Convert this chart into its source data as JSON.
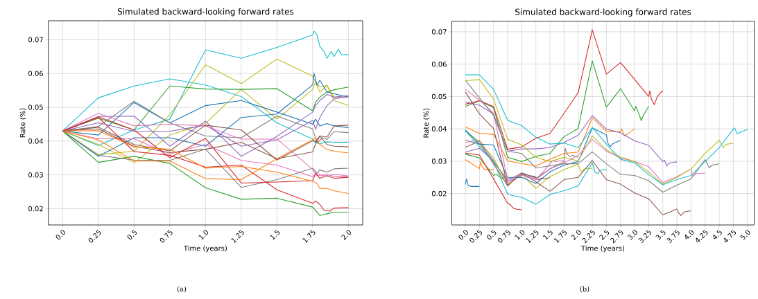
{
  "chart_data": [
    {
      "type": "line",
      "title": "Simulated backward-looking forward rates",
      "xlabel": "Time (years)",
      "ylabel": "Rate (%)",
      "annotations": [
        "(a)"
      ],
      "grid": true,
      "xlim": [
        -0.1,
        2.1
      ],
      "ylim": [
        0.0152,
        0.0756
      ],
      "xticks": [
        {
          "value": 0,
          "label": "0.0"
        },
        0.25,
        0.5,
        0.75,
        {
          "value": 1,
          "label": "1.0"
        },
        1.25,
        1.5,
        1.75,
        {
          "value": 2,
          "label": "2.0"
        }
      ],
      "yticks": [
        0.02,
        0.03,
        0.04,
        0.05,
        0.06,
        0.07
      ],
      "series": [
        {
          "color": "#17becf",
          "x": [
            0,
            0.25,
            0.5,
            0.75,
            1,
            1.25,
            1.5,
            1.75,
            1.77,
            1.8,
            1.85,
            1.9,
            2.0
          ],
          "values": [
            0.043,
            0.0528,
            0.0563,
            0.0584,
            0.0566,
            0.0532,
            0.0454,
            0.0406,
            0.0395,
            0.0392,
            0.0398,
            0.0396,
            0.0397
          ]
        },
        {
          "color": "#17becf",
          "x": [
            0,
            0.25,
            0.5,
            0.75,
            1,
            1.25,
            1.5,
            1.75,
            1.76,
            1.78,
            1.8,
            1.83,
            1.85,
            1.88,
            1.9,
            1.93,
            1.95,
            2.0
          ],
          "values": [
            0.043,
            0.0387,
            0.0433,
            0.0465,
            0.067,
            0.0645,
            0.0677,
            0.0714,
            0.0725,
            0.0715,
            0.068,
            0.0665,
            0.0645,
            0.0665,
            0.065,
            0.0672,
            0.0655,
            0.0656
          ]
        },
        {
          "color": "#bcbd22",
          "x": [
            0,
            0.25,
            0.5,
            0.75,
            1,
            1.25,
            1.5,
            1.75,
            1.77,
            1.8,
            1.85,
            1.9,
            2.0
          ],
          "values": [
            0.043,
            0.036,
            0.037,
            0.0478,
            0.0626,
            0.057,
            0.0643,
            0.0592,
            0.0575,
            0.056,
            0.0565,
            0.052,
            0.0505
          ]
        },
        {
          "color": "#bcbd22",
          "x": [
            0,
            0.25,
            0.5,
            0.75,
            1,
            1.25,
            1.5,
            1.75,
            1.77,
            1.8,
            1.85,
            1.9,
            2.0
          ],
          "values": [
            0.043,
            0.039,
            0.0336,
            0.0418,
            0.0452,
            0.0553,
            0.0465,
            0.0553,
            0.0575,
            0.0545,
            0.0565,
            0.053,
            0.053
          ]
        },
        {
          "color": "#2ca02c",
          "x": [
            0,
            0.25,
            0.5,
            0.75,
            1,
            1.25,
            1.5,
            1.75,
            1.77,
            1.8,
            1.85,
            1.9,
            2.0
          ],
          "values": [
            0.043,
            0.0468,
            0.0433,
            0.0563,
            0.0554,
            0.0553,
            0.0555,
            0.049,
            0.0515,
            0.053,
            0.0545,
            0.0552,
            0.056
          ]
        },
        {
          "color": "#2ca02c",
          "x": [
            0,
            0.25,
            0.5,
            0.75,
            1,
            1.25,
            1.5,
            1.75,
            1.78,
            1.8,
            1.85,
            1.9,
            2.0
          ],
          "values": [
            0.043,
            0.0337,
            0.0355,
            0.0334,
            0.0262,
            0.0228,
            0.0231,
            0.0205,
            0.019,
            0.018,
            0.0185,
            0.019,
            0.019
          ]
        },
        {
          "color": "#1f77b4",
          "x": [
            0,
            0.25,
            0.5,
            0.75,
            1,
            1.25,
            1.5,
            1.75,
            1.77,
            1.8,
            1.85,
            1.9,
            2.0
          ],
          "values": [
            0.043,
            0.0418,
            0.0514,
            0.0454,
            0.0505,
            0.052,
            0.0486,
            0.045,
            0.0465,
            0.0445,
            0.0452,
            0.0445,
            0.044
          ]
        },
        {
          "color": "#1f77b4",
          "x": [
            0,
            0.25,
            0.5,
            0.75,
            1,
            1.25,
            1.5,
            1.75,
            1.76,
            1.78,
            1.8,
            1.85,
            1.9,
            2.0
          ],
          "values": [
            0.043,
            0.0355,
            0.041,
            0.041,
            0.0385,
            0.047,
            0.048,
            0.0567,
            0.06,
            0.0565,
            0.058,
            0.0545,
            0.054,
            0.053
          ]
        },
        {
          "color": "#7f7f7f",
          "x": [
            0,
            0.25,
            0.5,
            0.75,
            1,
            1.25,
            1.5,
            1.75,
            1.78,
            1.82,
            1.85,
            1.9,
            2.0
          ],
          "values": [
            0.043,
            0.0443,
            0.0518,
            0.0454,
            0.0415,
            0.041,
            0.0474,
            0.0436,
            0.0395,
            0.041,
            0.0405,
            0.0428,
            0.0425
          ]
        },
        {
          "color": "#7f7f7f",
          "x": [
            0,
            0.25,
            0.5,
            0.75,
            1,
            1.25,
            1.5,
            1.75,
            1.78,
            1.8,
            1.85,
            1.9,
            2.0
          ],
          "values": [
            0.043,
            0.0358,
            0.0344,
            0.0343,
            0.0376,
            0.0263,
            0.0286,
            0.032,
            0.0305,
            0.0315,
            0.0308,
            0.0318,
            0.032
          ]
        },
        {
          "color": "#9467bd",
          "x": [
            0,
            0.25,
            0.5,
            0.75,
            1,
            1.25,
            1.5,
            1.75,
            1.77,
            1.8,
            1.85,
            1.9,
            2.0
          ],
          "values": [
            0.043,
            0.0473,
            0.0474,
            0.0385,
            0.0459,
            0.0355,
            0.0414,
            0.0486,
            0.0505,
            0.052,
            0.0538,
            0.053,
            0.0535
          ]
        },
        {
          "color": "#9467bd",
          "x": [
            0,
            0.25,
            0.5,
            0.75,
            1,
            1.25,
            1.5,
            1.75,
            1.77,
            1.8,
            1.85,
            1.9,
            2.0
          ],
          "values": [
            0.043,
            0.0454,
            0.0429,
            0.0429,
            0.0447,
            0.0385,
            0.0404,
            0.0461,
            0.0435,
            0.047,
            0.0505,
            0.0525,
            0.0532
          ]
        },
        {
          "color": "#e377c2",
          "x": [
            0,
            0.25,
            0.5,
            0.75,
            1,
            1.25,
            1.5,
            1.75,
            1.78,
            1.82,
            1.85,
            1.9,
            2.0
          ],
          "values": [
            0.043,
            0.0482,
            0.0445,
            0.045,
            0.0445,
            0.0406,
            0.0406,
            0.0316,
            0.0298,
            0.03,
            0.0296,
            0.0302,
            0.0297
          ]
        },
        {
          "color": "#e377c2",
          "x": [
            0,
            0.25,
            0.5,
            0.75,
            1,
            1.25,
            1.5,
            1.75,
            1.78,
            1.82,
            1.85,
            1.9,
            2.0
          ],
          "values": [
            0.043,
            0.0407,
            0.0407,
            0.0362,
            0.039,
            0.0343,
            0.0329,
            0.0295,
            0.0305,
            0.0298,
            0.0302,
            0.0296,
            0.0295
          ]
        },
        {
          "color": "#8c564b",
          "x": [
            0,
            0.25,
            0.5,
            0.75,
            1,
            1.25,
            1.5,
            1.75,
            1.78,
            1.8,
            1.85,
            1.9,
            2.0
          ],
          "values": [
            0.043,
            0.0441,
            0.039,
            0.0371,
            0.0447,
            0.0433,
            0.0344,
            0.0401,
            0.0398,
            0.0415,
            0.0412,
            0.0445,
            0.0447
          ]
        },
        {
          "color": "#8c564b",
          "x": [
            0,
            0.25,
            0.5,
            0.75,
            1,
            1.25,
            1.5,
            1.75,
            1.78,
            1.8,
            1.85,
            1.9,
            2.0
          ],
          "values": [
            0.043,
            0.0436,
            0.0385,
            0.0366,
            0.0376,
            0.0396,
            0.0348,
            0.0368,
            0.0405,
            0.0415,
            0.039,
            0.0385,
            0.0383
          ]
        },
        {
          "color": "#d62728",
          "x": [
            0,
            0.25,
            0.5,
            0.75,
            1,
            1.25,
            1.5,
            1.75,
            1.77,
            1.8,
            1.85,
            1.9,
            2.0
          ],
          "values": [
            0.043,
            0.0472,
            0.0433,
            0.0351,
            0.0408,
            0.0276,
            0.0279,
            0.0283,
            0.0305,
            0.029,
            0.0298,
            0.029,
            0.0293
          ]
        },
        {
          "color": "#d62728",
          "x": [
            0,
            0.25,
            0.5,
            0.75,
            1,
            1.25,
            1.5,
            1.75,
            1.77,
            1.8,
            1.83,
            1.87,
            1.9,
            2.0
          ],
          "values": [
            0.043,
            0.047,
            0.0369,
            0.0358,
            0.0323,
            0.0329,
            0.0256,
            0.0216,
            0.0223,
            0.0213,
            0.0195,
            0.0193,
            0.0202,
            0.0203
          ]
        },
        {
          "color": "#ff7f0e",
          "x": [
            0,
            0.25,
            0.5,
            0.75,
            1,
            1.25,
            1.5,
            1.75,
            1.78,
            1.8,
            1.85,
            1.9,
            2.0
          ],
          "values": [
            0.043,
            0.0431,
            0.0383,
            0.0376,
            0.032,
            0.0325,
            0.0308,
            0.0281,
            0.0275,
            0.026,
            0.026,
            0.0253,
            0.0245
          ]
        },
        {
          "color": "#ff7f0e",
          "x": [
            0,
            0.25,
            0.5,
            0.75,
            1,
            1.25,
            1.5,
            1.75,
            1.77,
            1.8,
            1.85,
            1.9,
            2.0
          ],
          "values": [
            0.043,
            0.0404,
            0.0341,
            0.0341,
            0.0289,
            0.0286,
            0.0348,
            0.0404,
            0.041,
            0.039,
            0.0375,
            0.037,
            0.0365
          ]
        }
      ]
    },
    {
      "type": "line",
      "title": "Simulated backward-looking forward rates",
      "xlabel": "Time (years)",
      "ylabel": "Rate (%)",
      "annotations": [
        "(b)"
      ],
      "grid": true,
      "xlim": [
        -0.24,
        5.12
      ],
      "ylim": [
        0.0103,
        0.0733
      ],
      "xticks": [
        {
          "value": 0,
          "label": "0.0"
        },
        0.25,
        0.5,
        0.75,
        {
          "value": 1,
          "label": "1.0"
        },
        1.25,
        1.5,
        1.75,
        {
          "value": 2,
          "label": "2.0"
        },
        2.25,
        2.5,
        2.75,
        {
          "value": 3,
          "label": "3.0"
        },
        3.25,
        3.5,
        3.75,
        {
          "value": 4,
          "label": "4.0"
        },
        4.25,
        4.5,
        4.75,
        {
          "value": 5,
          "label": "5.0"
        }
      ],
      "yticks": [
        0.02,
        0.03,
        0.04,
        0.05,
        0.06,
        0.07
      ],
      "series": [
        {
          "color": "#1f77b4",
          "x": [
            0,
            0.02,
            0.05,
            0.1,
            0.25
          ],
          "values": [
            0.0228,
            0.0245,
            0.0225,
            0.0222,
            0.0222
          ]
        },
        {
          "color": "#ff7f0e",
          "x": [
            0,
            0.25,
            0.27,
            0.3,
            0.35,
            0.4,
            0.5
          ],
          "values": [
            0.0305,
            0.0277,
            0.0297,
            0.0283,
            0.0273,
            0.0276,
            0.0273
          ]
        },
        {
          "color": "#2ca02c",
          "x": [
            0,
            0.25,
            0.5,
            0.55,
            0.6,
            0.65,
            0.7,
            0.75
          ],
          "values": [
            0.0322,
            0.031,
            0.0256,
            0.026,
            0.0252,
            0.0246,
            0.0252,
            0.0252
          ]
        },
        {
          "color": "#d62728",
          "x": [
            0,
            0.25,
            0.5,
            0.75,
            0.8,
            0.85,
            0.9,
            1.0
          ],
          "values": [
            0.0325,
            0.0319,
            0.0245,
            0.017,
            0.0165,
            0.0155,
            0.0152,
            0.015
          ]
        },
        {
          "color": "#9467bd",
          "x": [
            0,
            0.25,
            0.5,
            0.75,
            1,
            1.05,
            1.1,
            1.15,
            1.25
          ],
          "values": [
            0.0328,
            0.034,
            0.0299,
            0.0237,
            0.0256,
            0.0258,
            0.025,
            0.0255,
            0.0253
          ]
        },
        {
          "color": "#8c564b",
          "x": [
            0,
            0.25,
            0.5,
            0.75,
            1,
            1.25,
            1.3,
            1.35,
            1.4,
            1.5
          ],
          "values": [
            0.0343,
            0.0362,
            0.0292,
            0.0224,
            0.0264,
            0.0249,
            0.0242,
            0.0248,
            0.0245,
            0.025
          ]
        },
        {
          "color": "#e377c2",
          "x": [
            0,
            0.25,
            0.5,
            0.75,
            1,
            1.25,
            1.5,
            1.55,
            1.6,
            1.65,
            1.75
          ],
          "values": [
            0.0358,
            0.0365,
            0.0302,
            0.0231,
            0.0261,
            0.0242,
            0.0292,
            0.0302,
            0.0298,
            0.0301,
            0.0302
          ]
        },
        {
          "color": "#7f7f7f",
          "x": [
            0,
            0.25,
            0.5,
            0.75,
            1,
            1.25,
            1.5,
            1.75,
            1.77,
            1.8,
            1.85,
            1.9,
            2.0
          ],
          "values": [
            0.0365,
            0.0353,
            0.0299,
            0.0242,
            0.0263,
            0.0247,
            0.0277,
            0.0299,
            0.034,
            0.0322,
            0.0315,
            0.0318,
            0.0312
          ]
        },
        {
          "color": "#bcbd22",
          "x": [
            0,
            0.25,
            0.5,
            0.75,
            1,
            1.25,
            1.5,
            1.75,
            2,
            2.05,
            2.1,
            2.15,
            2.25
          ],
          "values": [
            0.0393,
            0.0361,
            0.031,
            0.0227,
            0.026,
            0.0216,
            0.0252,
            0.0274,
            0.029,
            0.0267,
            0.0275,
            0.0278,
            0.0278
          ]
        },
        {
          "color": "#17becf",
          "x": [
            0,
            0.25,
            0.5,
            0.75,
            1,
            1.25,
            1.5,
            1.75,
            2,
            2.25,
            2.3,
            2.35,
            2.4,
            2.5
          ],
          "values": [
            0.0394,
            0.0345,
            0.0299,
            0.0197,
            0.0188,
            0.0167,
            0.0197,
            0.0209,
            0.0224,
            0.0295,
            0.0265,
            0.0262,
            0.0272,
            0.0275
          ]
        },
        {
          "color": "#1f77b4",
          "x": [
            0,
            0.25,
            0.5,
            0.75,
            1,
            1.25,
            1.5,
            1.75,
            2,
            2.25,
            2.5,
            2.53,
            2.57,
            2.62,
            2.75
          ],
          "values": [
            0.0397,
            0.0353,
            0.035,
            0.0249,
            0.025,
            0.0231,
            0.0267,
            0.0288,
            0.0299,
            0.0403,
            0.0381,
            0.0355,
            0.0345,
            0.0355,
            0.0364
          ]
        },
        {
          "color": "#ff7f0e",
          "x": [
            0,
            0.25,
            0.5,
            0.75,
            1,
            1.25,
            1.5,
            1.75,
            2,
            2.25,
            2.5,
            2.75,
            2.77,
            2.82,
            2.88,
            3.0
          ],
          "values": [
            0.0406,
            0.0386,
            0.0383,
            0.0301,
            0.0293,
            0.0285,
            0.0306,
            0.0324,
            0.0328,
            0.0434,
            0.0392,
            0.0391,
            0.04,
            0.0378,
            0.0385,
            0.04
          ]
        },
        {
          "color": "#2ca02c",
          "x": [
            0,
            0.25,
            0.5,
            0.75,
            1,
            1.25,
            1.5,
            1.75,
            2,
            2.25,
            2.5,
            2.75,
            3,
            3.02,
            3.08,
            3.12,
            3.15,
            3.2,
            3.25
          ],
          "values": [
            0.0469,
            0.0487,
            0.0465,
            0.0312,
            0.0299,
            0.0315,
            0.0324,
            0.0376,
            0.0401,
            0.061,
            0.0467,
            0.0524,
            0.0456,
            0.047,
            0.0445,
            0.0425,
            0.044,
            0.0455,
            0.047
          ]
        },
        {
          "color": "#d62728",
          "x": [
            0,
            0.25,
            0.5,
            0.75,
            1,
            1.25,
            1.5,
            1.75,
            2,
            2.25,
            2.5,
            2.75,
            3,
            3.25,
            3.27,
            3.3,
            3.35,
            3.4,
            3.45,
            3.5
          ],
          "values": [
            0.0476,
            0.0487,
            0.0469,
            0.0337,
            0.0344,
            0.0371,
            0.0386,
            0.0448,
            0.0512,
            0.0706,
            0.0569,
            0.0605,
            0.0553,
            0.05,
            0.0518,
            0.049,
            0.0475,
            0.0498,
            0.051,
            0.0518
          ]
        },
        {
          "color": "#9467bd",
          "x": [
            0,
            0.25,
            0.5,
            0.75,
            1,
            1.25,
            1.5,
            1.75,
            2,
            2.25,
            2.5,
            2.75,
            3,
            3.25,
            3.5,
            3.53,
            3.57,
            3.6,
            3.65,
            3.75
          ],
          "values": [
            0.0483,
            0.0473,
            0.0446,
            0.0331,
            0.0338,
            0.0338,
            0.0342,
            0.0358,
            0.038,
            0.0441,
            0.0399,
            0.0388,
            0.0363,
            0.0349,
            0.0299,
            0.0303,
            0.0285,
            0.0293,
            0.0295,
            0.0298
          ]
        },
        {
          "color": "#8c564b",
          "x": [
            0,
            0.25,
            0.5,
            0.75,
            1,
            1.25,
            1.5,
            1.75,
            2,
            2.25,
            2.5,
            2.75,
            3,
            3.25,
            3.5,
            3.75,
            3.78,
            3.82,
            3.88,
            4.0
          ],
          "values": [
            0.0514,
            0.0446,
            0.0401,
            0.0224,
            0.0263,
            0.0236,
            0.0207,
            0.0243,
            0.025,
            0.0302,
            0.0243,
            0.0229,
            0.0202,
            0.0184,
            0.0134,
            0.0152,
            0.014,
            0.0132,
            0.0143,
            0.0147
          ]
        },
        {
          "color": "#e377c2",
          "x": [
            0,
            0.25,
            0.5,
            0.75,
            1,
            1.25,
            1.5,
            1.75,
            2,
            2.25,
            2.5,
            2.75,
            3,
            3.25,
            3.5,
            3.75,
            4,
            4.03,
            4.1,
            4.25
          ],
          "values": [
            0.0522,
            0.0489,
            0.0448,
            0.0242,
            0.0258,
            0.0243,
            0.0276,
            0.0295,
            0.0318,
            0.0367,
            0.0331,
            0.031,
            0.0299,
            0.0283,
            0.0234,
            0.0252,
            0.0276,
            0.0255,
            0.0262,
            0.0263
          ]
        },
        {
          "color": "#7f7f7f",
          "x": [
            0,
            0.25,
            0.5,
            0.75,
            1,
            1.25,
            1.5,
            1.75,
            2,
            2.25,
            2.5,
            2.75,
            3,
            3.25,
            3.5,
            3.75,
            4,
            4.25,
            4.28,
            4.32,
            4.38,
            4.5
          ],
          "values": [
            0.055,
            0.0496,
            0.0442,
            0.0331,
            0.0324,
            0.0279,
            0.0286,
            0.0292,
            0.0292,
            0.0329,
            0.0292,
            0.0259,
            0.0256,
            0.024,
            0.0204,
            0.0226,
            0.0245,
            0.0305,
            0.0295,
            0.028,
            0.0288,
            0.0292
          ]
        },
        {
          "color": "#bcbd22",
          "x": [
            0,
            0.25,
            0.5,
            0.75,
            1,
            1.25,
            1.5,
            1.75,
            2,
            2.25,
            2.5,
            2.75,
            3,
            3.25,
            3.5,
            3.75,
            4,
            4.25,
            4.5,
            4.53,
            4.57,
            4.62,
            4.75
          ],
          "values": [
            0.0549,
            0.0552,
            0.0492,
            0.0368,
            0.035,
            0.0312,
            0.0299,
            0.0312,
            0.0301,
            0.0378,
            0.0335,
            0.0313,
            0.0299,
            0.0267,
            0.0229,
            0.025,
            0.0276,
            0.0324,
            0.0365,
            0.0355,
            0.0342,
            0.0352,
            0.0356
          ]
        },
        {
          "color": "#17becf",
          "x": [
            0,
            0.25,
            0.5,
            0.75,
            1,
            1.25,
            1.5,
            1.75,
            2,
            2.25,
            2.5,
            2.75,
            3,
            3.25,
            3.5,
            3.75,
            4,
            4.25,
            4.5,
            4.75,
            4.77,
            4.82,
            4.88,
            5.0
          ],
          "values": [
            0.0567,
            0.0567,
            0.0522,
            0.0426,
            0.041,
            0.0374,
            0.0353,
            0.0356,
            0.0342,
            0.0404,
            0.0353,
            0.0306,
            0.0295,
            0.0259,
            0.0227,
            0.0243,
            0.0256,
            0.0299,
            0.0342,
            0.0399,
            0.0403,
            0.0385,
            0.039,
            0.0398
          ]
        }
      ]
    }
  ]
}
